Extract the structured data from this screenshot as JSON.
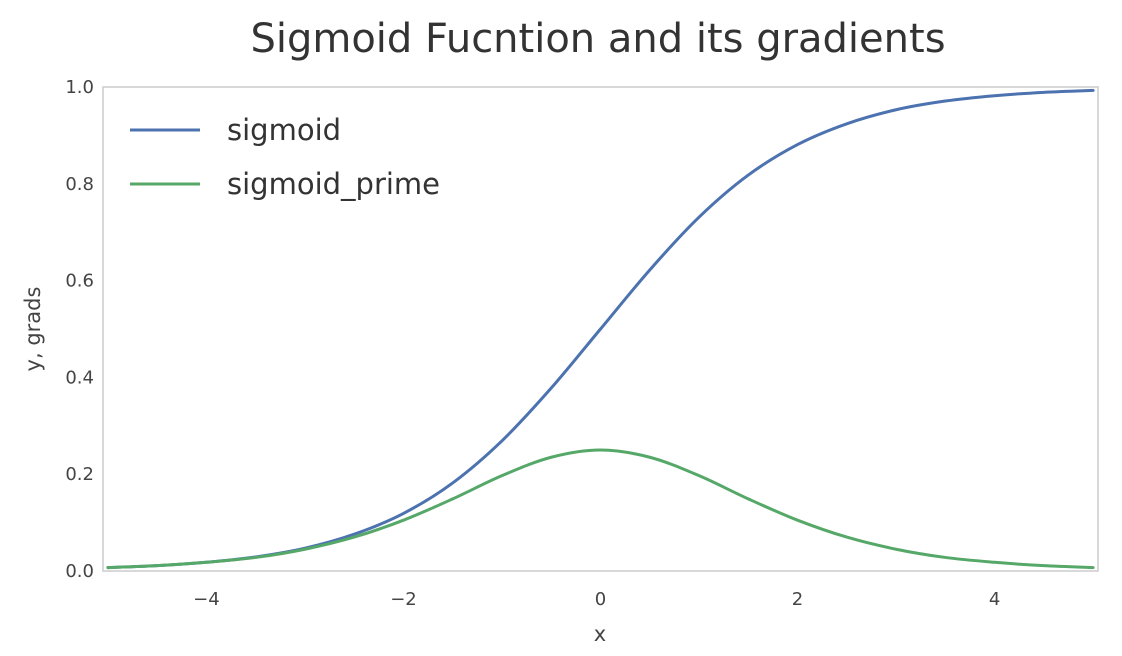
{
  "chart_data": {
    "type": "line",
    "title": "Sigmoid Fucntion and its gradients",
    "xlabel": "x",
    "ylabel": "y, grads",
    "xlim": [
      -5.05,
      5.05
    ],
    "ylim": [
      0.0,
      1.0
    ],
    "x_ticks": [
      -4,
      -2,
      0,
      2,
      4
    ],
    "x_tick_labels": [
      "−4",
      "−2",
      "0",
      "2",
      "4"
    ],
    "y_ticks": [
      0.0,
      0.2,
      0.4,
      0.6,
      0.8,
      1.0
    ],
    "y_tick_labels": [
      "0.0",
      "0.2",
      "0.4",
      "0.6",
      "0.8",
      "1.0"
    ],
    "grid": false,
    "legend_position": "top-left",
    "x": [
      -5,
      -4.5,
      -4,
      -3.5,
      -3,
      -2.5,
      -2,
      -1.5,
      -1,
      -0.5,
      0,
      0.5,
      1,
      1.5,
      2,
      2.5,
      3,
      3.5,
      4,
      4.5,
      5
    ],
    "series": [
      {
        "name": "sigmoid",
        "color": "#4c72b0",
        "values": [
          0.007,
          0.011,
          0.018,
          0.029,
          0.047,
          0.076,
          0.119,
          0.182,
          0.269,
          0.378,
          0.5,
          0.622,
          0.731,
          0.818,
          0.881,
          0.924,
          0.953,
          0.971,
          0.982,
          0.989,
          0.993
        ]
      },
      {
        "name": "sigmoid_prime",
        "color": "#55a868",
        "values": [
          0.007,
          0.011,
          0.018,
          0.028,
          0.045,
          0.07,
          0.105,
          0.149,
          0.197,
          0.235,
          0.25,
          0.235,
          0.197,
          0.149,
          0.105,
          0.07,
          0.045,
          0.028,
          0.018,
          0.011,
          0.007
        ]
      }
    ]
  }
}
